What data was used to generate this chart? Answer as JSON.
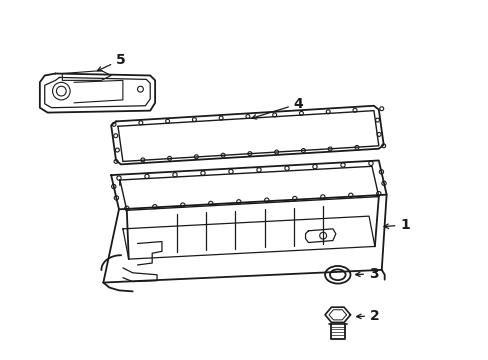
{
  "background_color": "#ffffff",
  "line_color": "#1a1a1a",
  "line_width": 1.3
}
